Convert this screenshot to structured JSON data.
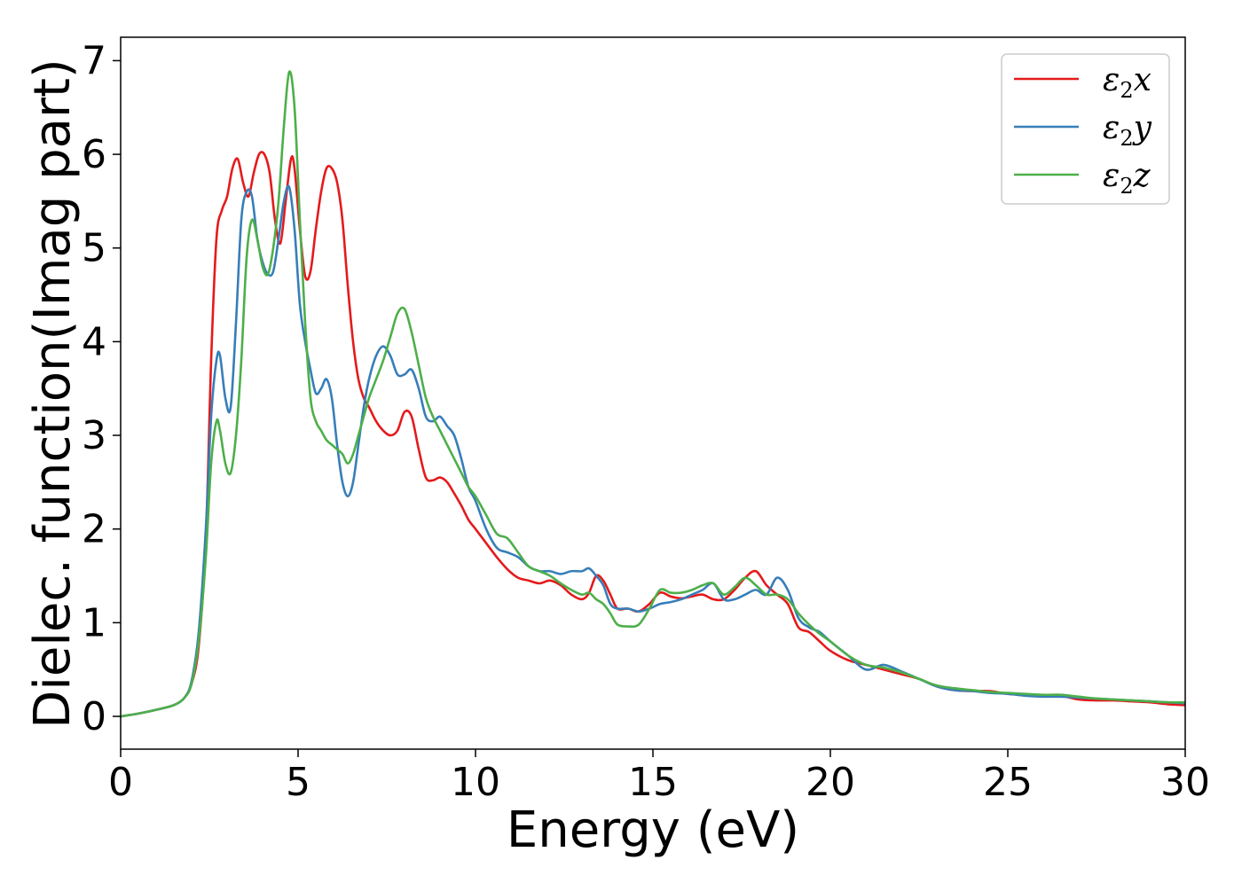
{
  "chart_data": {
    "type": "line",
    "title": "",
    "xlabel": "Energy (eV)",
    "ylabel": "Dielec. function(Imag part)",
    "xlim": [
      0,
      30
    ],
    "ylim": [
      -0.35,
      7.25
    ],
    "xticks": [
      0,
      5,
      10,
      15,
      20,
      25,
      30
    ],
    "yticks": [
      0,
      1,
      2,
      3,
      4,
      5,
      6,
      7
    ],
    "grid": false,
    "legend_position": "top-right",
    "series": [
      {
        "name": "ε₂x",
        "legend_base": "ε",
        "legend_sub": "2",
        "legend_suffix": "x",
        "color": "#e41a1c",
        "x": [
          0,
          0.5,
          1,
          1.5,
          1.8,
          2.0,
          2.2,
          2.4,
          2.55,
          2.7,
          2.85,
          3.0,
          3.15,
          3.3,
          3.45,
          3.6,
          3.75,
          3.9,
          4.05,
          4.2,
          4.35,
          4.5,
          4.65,
          4.8,
          4.9,
          5.05,
          5.2,
          5.35,
          5.5,
          5.65,
          5.8,
          5.95,
          6.1,
          6.25,
          6.4,
          6.55,
          6.7,
          6.85,
          7.0,
          7.2,
          7.4,
          7.6,
          7.8,
          8.0,
          8.2,
          8.4,
          8.6,
          8.8,
          9.0,
          9.2,
          9.4,
          9.6,
          9.8,
          10.0,
          10.3,
          10.6,
          10.9,
          11.2,
          11.5,
          11.8,
          12.1,
          12.4,
          12.7,
          13.0,
          13.2,
          13.4,
          13.6,
          13.8,
          14.0,
          14.3,
          14.6,
          14.9,
          15.2,
          15.5,
          15.8,
          16.1,
          16.4,
          16.7,
          17.0,
          17.3,
          17.6,
          17.9,
          18.2,
          18.5,
          18.8,
          19.1,
          19.4,
          19.7,
          20.0,
          20.5,
          21.0,
          21.5,
          22.0,
          22.5,
          23.0,
          23.5,
          24.0,
          24.5,
          25.0,
          25.5,
          26.0,
          26.5,
          27.0,
          27.5,
          28.0,
          28.5,
          29.0,
          29.5,
          30.0
        ],
        "y": [
          0,
          0.03,
          0.07,
          0.12,
          0.2,
          0.35,
          0.75,
          1.9,
          3.8,
          5.1,
          5.4,
          5.55,
          5.85,
          5.95,
          5.7,
          5.55,
          5.8,
          6.0,
          6.0,
          5.8,
          5.3,
          5.05,
          5.5,
          5.95,
          5.85,
          5.2,
          4.7,
          4.75,
          5.2,
          5.6,
          5.85,
          5.85,
          5.7,
          5.3,
          4.6,
          4.0,
          3.6,
          3.4,
          3.3,
          3.15,
          3.05,
          3.0,
          3.05,
          3.25,
          3.2,
          2.85,
          2.55,
          2.52,
          2.55,
          2.5,
          2.38,
          2.25,
          2.1,
          2.0,
          1.85,
          1.7,
          1.57,
          1.48,
          1.45,
          1.42,
          1.45,
          1.4,
          1.3,
          1.25,
          1.32,
          1.5,
          1.45,
          1.3,
          1.15,
          1.15,
          1.12,
          1.2,
          1.32,
          1.28,
          1.26,
          1.28,
          1.3,
          1.25,
          1.25,
          1.35,
          1.48,
          1.55,
          1.4,
          1.3,
          1.2,
          0.95,
          0.9,
          0.8,
          0.7,
          0.6,
          0.55,
          0.5,
          0.45,
          0.4,
          0.32,
          0.28,
          0.27,
          0.27,
          0.24,
          0.23,
          0.22,
          0.22,
          0.18,
          0.17,
          0.17,
          0.16,
          0.15,
          0.13,
          0.12
        ]
      },
      {
        "name": "ε₂y",
        "legend_base": "ε",
        "legend_sub": "2",
        "legend_suffix": "y",
        "color": "#377eb8",
        "x": [
          0,
          0.5,
          1,
          1.5,
          1.8,
          2.0,
          2.2,
          2.4,
          2.55,
          2.7,
          2.8,
          2.95,
          3.1,
          3.25,
          3.4,
          3.55,
          3.7,
          3.85,
          4.0,
          4.15,
          4.3,
          4.45,
          4.6,
          4.75,
          4.9,
          5.05,
          5.2,
          5.35,
          5.5,
          5.65,
          5.8,
          5.95,
          6.1,
          6.25,
          6.4,
          6.55,
          6.7,
          6.85,
          7.0,
          7.2,
          7.4,
          7.6,
          7.8,
          8.0,
          8.2,
          8.4,
          8.6,
          8.8,
          9.0,
          9.2,
          9.4,
          9.6,
          9.8,
          10.0,
          10.3,
          10.6,
          10.9,
          11.2,
          11.5,
          11.8,
          12.1,
          12.4,
          12.7,
          13.0,
          13.2,
          13.4,
          13.6,
          13.8,
          14.0,
          14.3,
          14.6,
          14.9,
          15.2,
          15.5,
          15.8,
          16.1,
          16.4,
          16.7,
          17.0,
          17.3,
          17.6,
          17.9,
          18.2,
          18.5,
          18.8,
          19.1,
          19.4,
          19.7,
          20.0,
          20.5,
          21.0,
          21.5,
          22.0,
          22.5,
          23.0,
          23.5,
          24.0,
          24.5,
          25.0,
          25.5,
          26.0,
          26.5,
          27.0,
          27.5,
          28.0,
          28.5,
          29.0,
          29.5,
          30.0
        ],
        "y": [
          0,
          0.03,
          0.07,
          0.12,
          0.2,
          0.38,
          0.9,
          2.0,
          3.2,
          3.8,
          3.85,
          3.4,
          3.3,
          4.2,
          5.3,
          5.6,
          5.55,
          5.1,
          4.85,
          4.72,
          4.75,
          5.1,
          5.5,
          5.65,
          5.2,
          4.4,
          4.0,
          3.7,
          3.45,
          3.5,
          3.6,
          3.4,
          2.9,
          2.5,
          2.35,
          2.5,
          2.9,
          3.3,
          3.6,
          3.85,
          3.95,
          3.85,
          3.65,
          3.65,
          3.7,
          3.5,
          3.2,
          3.15,
          3.2,
          3.1,
          3.0,
          2.75,
          2.45,
          2.3,
          2.0,
          1.8,
          1.75,
          1.7,
          1.6,
          1.55,
          1.55,
          1.52,
          1.55,
          1.55,
          1.58,
          1.5,
          1.4,
          1.2,
          1.15,
          1.15,
          1.12,
          1.15,
          1.2,
          1.22,
          1.25,
          1.3,
          1.35,
          1.42,
          1.25,
          1.25,
          1.3,
          1.35,
          1.3,
          1.48,
          1.35,
          1.05,
          0.95,
          0.9,
          0.8,
          0.65,
          0.5,
          0.55,
          0.48,
          0.4,
          0.32,
          0.28,
          0.27,
          0.25,
          0.24,
          0.22,
          0.21,
          0.21,
          0.2,
          0.19,
          0.18,
          0.17,
          0.16,
          0.15,
          0.14
        ]
      },
      {
        "name": "ε₂z",
        "legend_base": "ε",
        "legend_sub": "2",
        "legend_suffix": "z",
        "color": "#4daf4a",
        "x": [
          0,
          0.5,
          1,
          1.5,
          1.8,
          2.0,
          2.2,
          2.4,
          2.55,
          2.7,
          2.8,
          2.95,
          3.1,
          3.25,
          3.4,
          3.55,
          3.7,
          3.85,
          4.0,
          4.15,
          4.3,
          4.45,
          4.6,
          4.75,
          4.9,
          5.05,
          5.2,
          5.35,
          5.5,
          5.65,
          5.8,
          5.95,
          6.1,
          6.25,
          6.4,
          6.55,
          6.7,
          6.85,
          7.0,
          7.2,
          7.4,
          7.6,
          7.8,
          8.0,
          8.2,
          8.4,
          8.6,
          8.8,
          9.0,
          9.2,
          9.4,
          9.6,
          9.8,
          10.0,
          10.3,
          10.6,
          10.9,
          11.2,
          11.5,
          11.8,
          12.1,
          12.4,
          12.7,
          13.0,
          13.2,
          13.4,
          13.6,
          13.8,
          14.0,
          14.3,
          14.6,
          14.9,
          15.2,
          15.5,
          15.8,
          16.1,
          16.4,
          16.7,
          17.0,
          17.3,
          17.6,
          17.9,
          18.2,
          18.5,
          18.8,
          19.1,
          19.4,
          19.7,
          20.0,
          20.5,
          21.0,
          21.5,
          22.0,
          22.5,
          23.0,
          23.5,
          24.0,
          24.5,
          25.0,
          25.5,
          26.0,
          26.5,
          27.0,
          27.5,
          28.0,
          28.5,
          29.0,
          29.5,
          30.0
        ],
        "y": [
          0,
          0.03,
          0.07,
          0.12,
          0.2,
          0.35,
          0.8,
          1.7,
          2.7,
          3.15,
          3.05,
          2.7,
          2.6,
          3.0,
          3.8,
          4.9,
          5.3,
          5.1,
          4.8,
          4.72,
          5.0,
          5.5,
          6.3,
          6.88,
          6.5,
          5.3,
          4.2,
          3.4,
          3.15,
          3.05,
          2.95,
          2.9,
          2.85,
          2.8,
          2.7,
          2.8,
          3.0,
          3.2,
          3.4,
          3.6,
          3.8,
          4.05,
          4.3,
          4.35,
          4.1,
          3.75,
          3.4,
          3.2,
          3.05,
          2.9,
          2.75,
          2.6,
          2.45,
          2.35,
          2.15,
          1.95,
          1.9,
          1.75,
          1.6,
          1.55,
          1.5,
          1.42,
          1.35,
          1.3,
          1.32,
          1.25,
          1.2,
          1.1,
          0.98,
          0.96,
          0.98,
          1.15,
          1.35,
          1.32,
          1.32,
          1.35,
          1.4,
          1.42,
          1.3,
          1.38,
          1.48,
          1.4,
          1.3,
          1.3,
          1.25,
          1.1,
          0.98,
          0.88,
          0.8,
          0.65,
          0.55,
          0.52,
          0.47,
          0.4,
          0.33,
          0.3,
          0.28,
          0.26,
          0.25,
          0.24,
          0.23,
          0.23,
          0.21,
          0.19,
          0.18,
          0.17,
          0.16,
          0.15,
          0.15
        ]
      }
    ]
  }
}
